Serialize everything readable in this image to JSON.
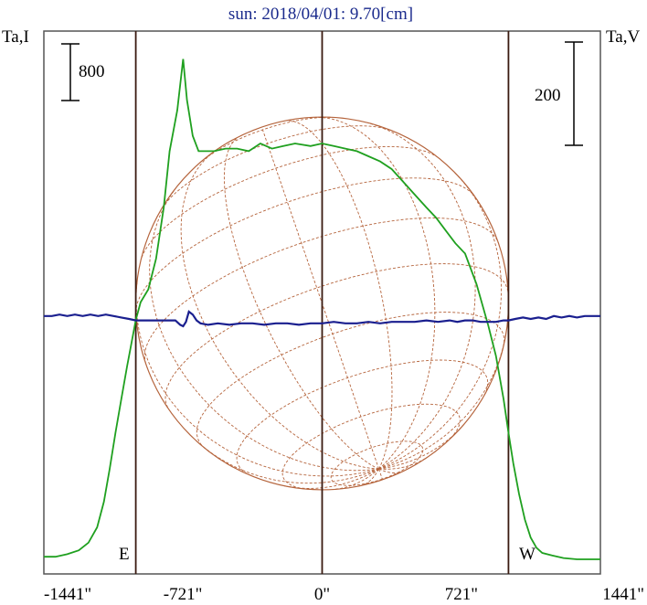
{
  "chart_data": {
    "type": "line",
    "title": "sun: 2018/04/01: 9.70[cm]",
    "left_axis_label": "Ta,I",
    "right_axis_label": "Ta,V",
    "x_ticks": [
      "-1441\"",
      "-721\"",
      "0\"",
      "721\"",
      "1441\""
    ],
    "x_tick_values": [
      -1441,
      -721,
      0,
      721,
      1441
    ],
    "xlim": [
      -1441,
      1441
    ],
    "limb_labels": {
      "east": "E",
      "west": "W"
    },
    "limb_positions": [
      -965,
      0,
      965
    ],
    "scale_bars": {
      "left": "800",
      "right": "200"
    },
    "disk": {
      "radius_arcsec": 965,
      "color": "#b5643c"
    },
    "series": [
      {
        "name": "I",
        "color": "#1fa01f",
        "x": [
          -1441,
          -1381,
          -1320,
          -1260,
          -1210,
          -1165,
          -1130,
          -1100,
          -1070,
          -1040,
          -1010,
          -985,
          -965,
          -940,
          -900,
          -860,
          -820,
          -790,
          -750,
          -720,
          -700,
          -670,
          -640,
          -600,
          -560,
          -500,
          -440,
          -380,
          -320,
          -260,
          -200,
          -140,
          -60,
          0,
          60,
          120,
          180,
          240,
          300,
          360,
          420,
          480,
          540,
          590,
          640,
          690,
          740,
          800,
          860,
          900,
          940,
          965,
          990,
          1020,
          1050,
          1080,
          1110,
          1140,
          1190,
          1250,
          1320,
          1380,
          1441
        ],
        "y": [
          0.035,
          0.035,
          0.045,
          0.06,
          0.09,
          0.15,
          0.25,
          0.38,
          0.52,
          0.65,
          0.78,
          0.88,
          0.96,
          1.03,
          1.08,
          1.2,
          1.4,
          1.62,
          1.78,
          1.98,
          1.82,
          1.68,
          1.62,
          1.62,
          1.62,
          1.63,
          1.63,
          1.62,
          1.65,
          1.63,
          1.64,
          1.65,
          1.64,
          1.65,
          1.64,
          1.63,
          1.62,
          1.6,
          1.58,
          1.55,
          1.5,
          1.45,
          1.4,
          1.36,
          1.31,
          1.26,
          1.22,
          1.1,
          0.94,
          0.82,
          0.65,
          0.52,
          0.4,
          0.28,
          0.18,
          0.11,
          0.07,
          0.05,
          0.04,
          0.03,
          0.025,
          0.025,
          0.025
        ]
      },
      {
        "name": "V",
        "color": "#1a1f8f",
        "x": [
          -1441,
          -1400,
          -1360,
          -1320,
          -1280,
          -1240,
          -1200,
          -1160,
          -1120,
          -1080,
          -1040,
          -1000,
          -965,
          -930,
          -900,
          -860,
          -800,
          -760,
          -735,
          -720,
          -705,
          -690,
          -670,
          -650,
          -630,
          -590,
          -540,
          -480,
          -420,
          -360,
          -300,
          -240,
          -180,
          -120,
          -60,
          0,
          60,
          120,
          180,
          240,
          300,
          360,
          420,
          480,
          540,
          600,
          660,
          700,
          740,
          780,
          820,
          860,
          900,
          940,
          965,
          1000,
          1040,
          1080,
          1120,
          1160,
          1200,
          1240,
          1280,
          1320,
          1360,
          1400,
          1441
        ],
        "y": [
          0.02,
          0.02,
          0.03,
          0.02,
          0.03,
          0.02,
          0.03,
          0.02,
          0.03,
          0.02,
          0.01,
          0.0,
          -0.01,
          -0.01,
          -0.01,
          -0.01,
          -0.01,
          -0.01,
          -0.04,
          -0.05,
          -0.02,
          0.05,
          0.03,
          -0.01,
          -0.03,
          -0.04,
          -0.03,
          -0.04,
          -0.03,
          -0.03,
          -0.04,
          -0.03,
          -0.03,
          -0.04,
          -0.03,
          -0.03,
          -0.02,
          -0.03,
          -0.03,
          -0.02,
          -0.03,
          -0.02,
          -0.02,
          -0.02,
          -0.01,
          -0.02,
          -0.01,
          -0.02,
          -0.01,
          -0.01,
          -0.02,
          -0.02,
          -0.02,
          -0.01,
          -0.01,
          0.0,
          0.01,
          0.0,
          0.01,
          0.0,
          0.02,
          0.01,
          0.02,
          0.01,
          0.02,
          0.02,
          0.02
        ]
      }
    ]
  }
}
